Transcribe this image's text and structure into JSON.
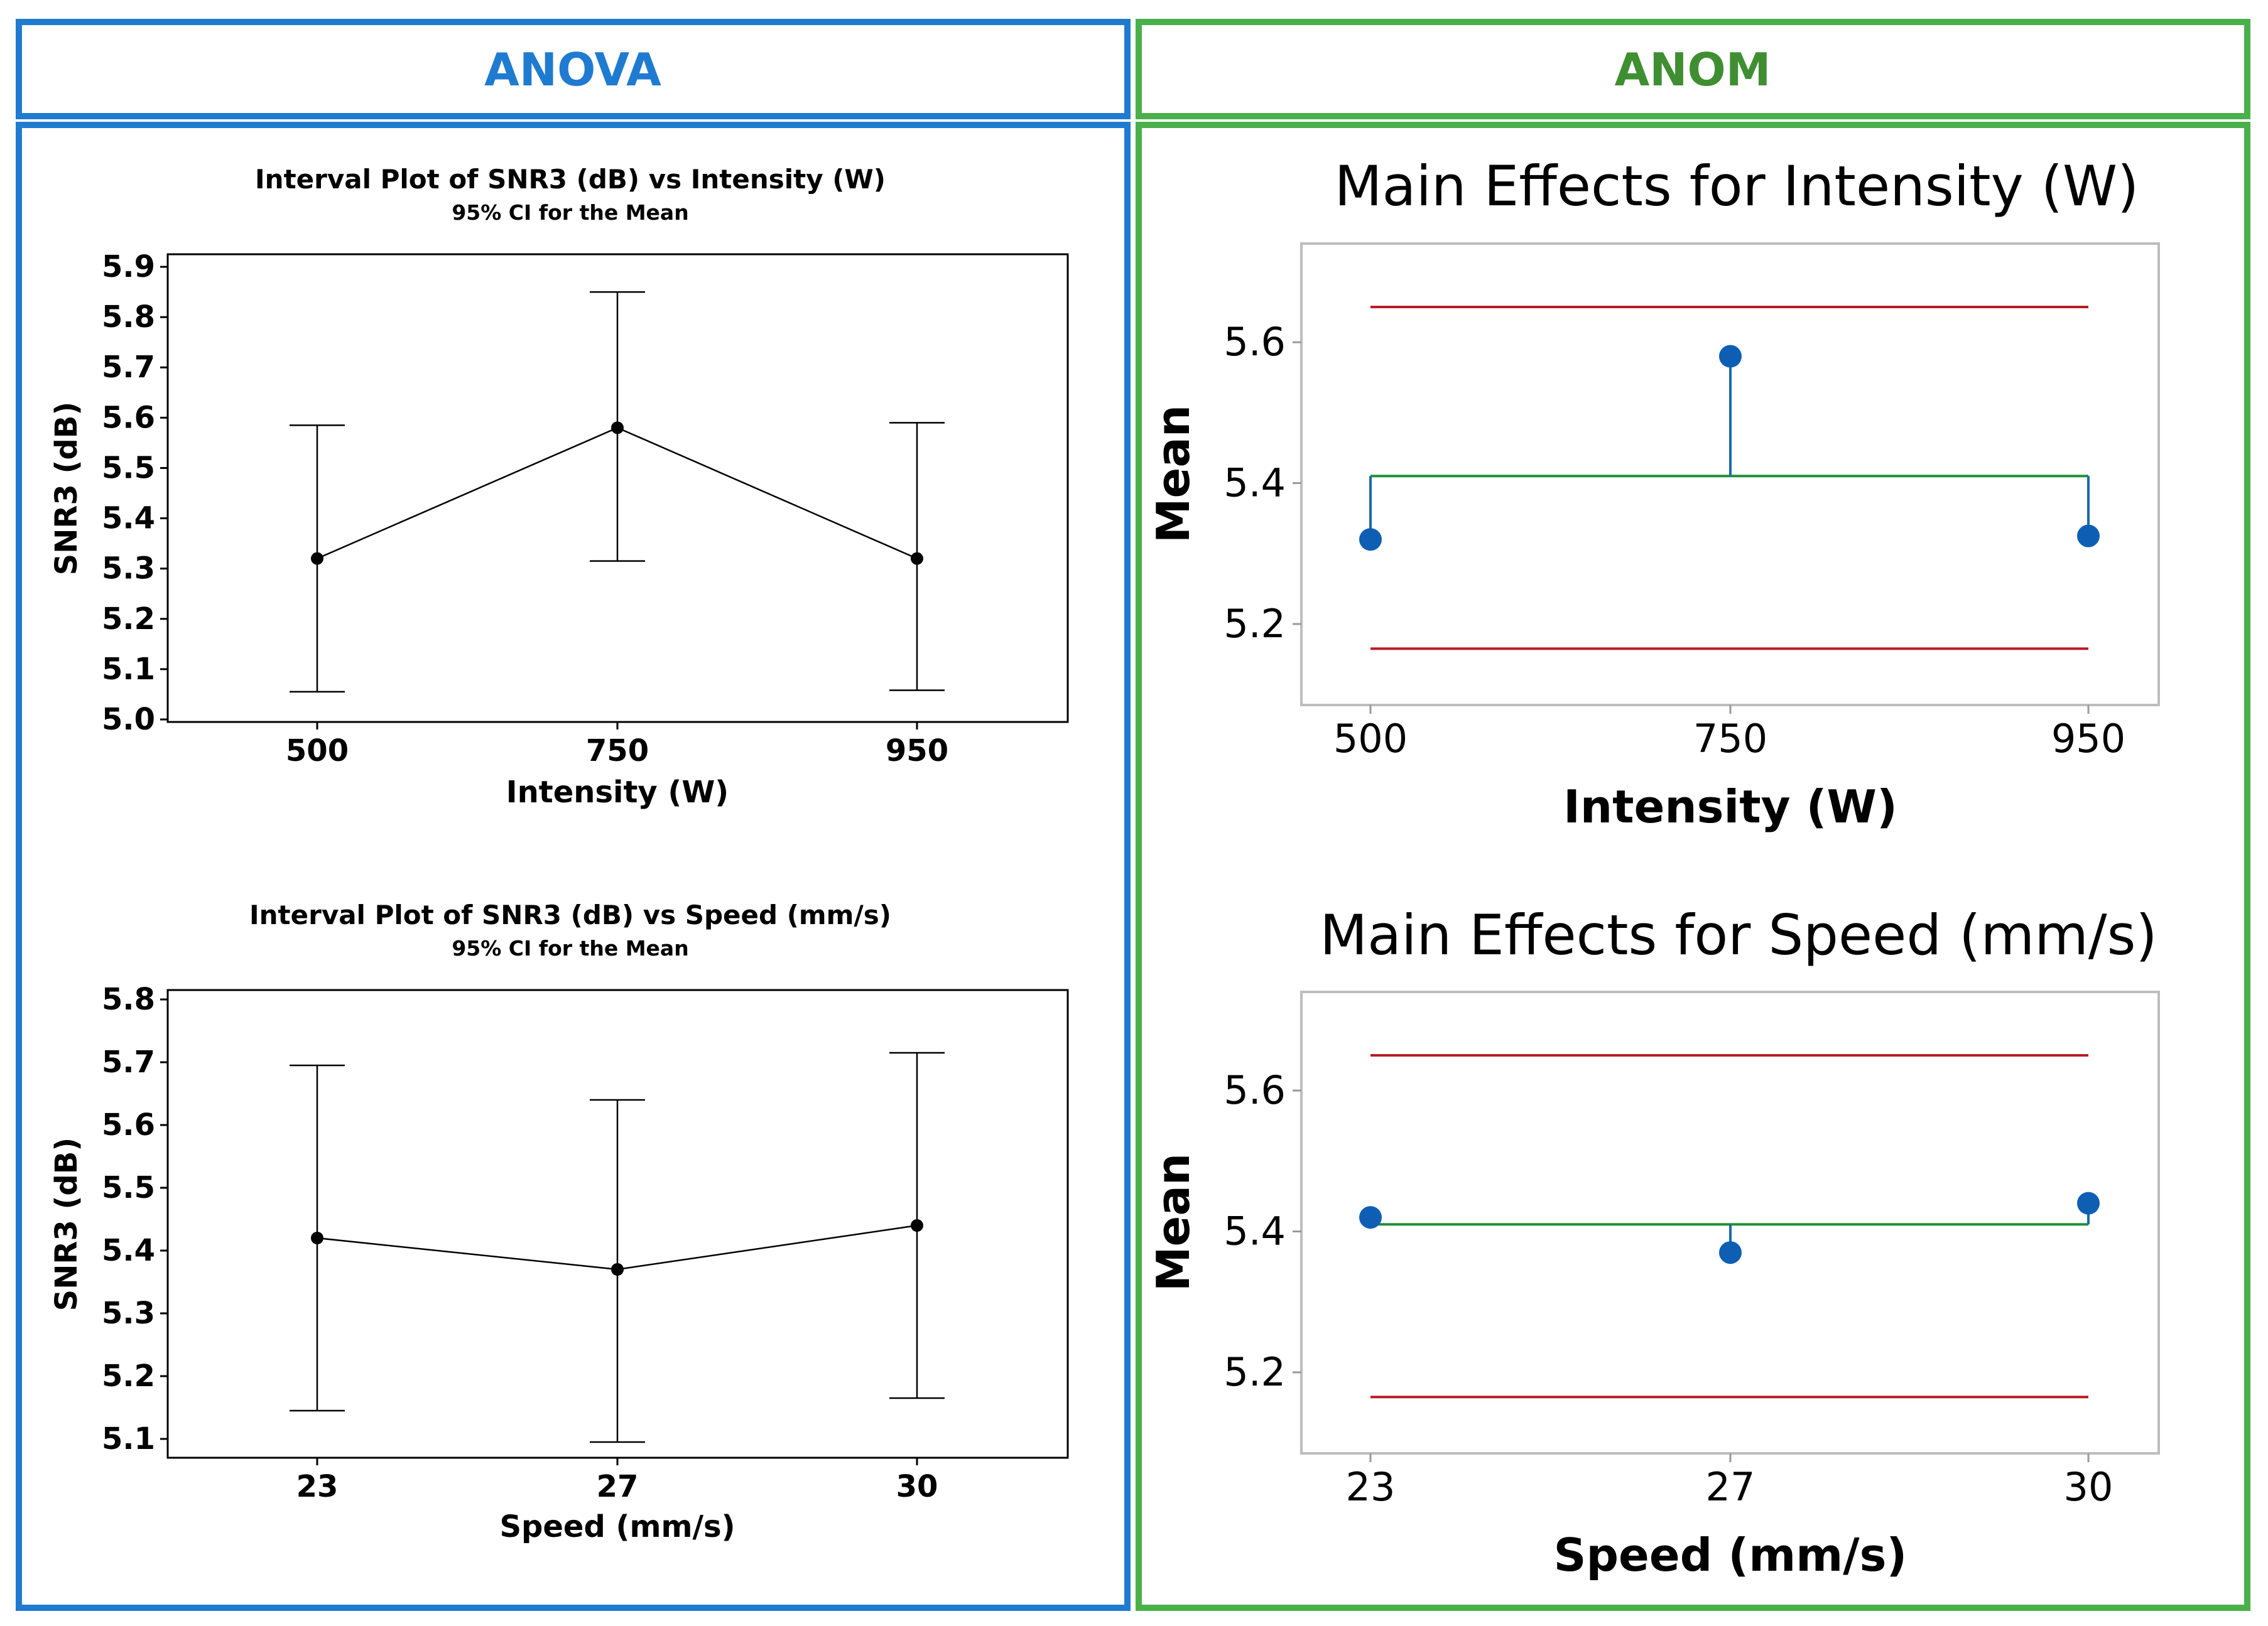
{
  "panels": {
    "anova": {
      "title": "ANOVA",
      "color": "#1f7bd0"
    },
    "anom": {
      "title": "ANOM",
      "color": "#4ab04a",
      "title_color": "#3f8f32"
    }
  },
  "chart_data": [
    {
      "type": "interval",
      "title": "Interval Plot of SNR3 (dB) vs Intensity (W)",
      "subtitle": "95% CI for the Mean",
      "xlabel": "Intensity (W)",
      "ylabel": "SNR3 (dB)",
      "categories": [
        "500",
        "750",
        "950"
      ],
      "means": [
        5.32,
        5.58,
        5.32
      ],
      "lower": [
        5.055,
        5.315,
        5.058
      ],
      "upper": [
        5.585,
        5.85,
        5.59
      ],
      "ylim": [
        4.995,
        5.925
      ],
      "yticks": [
        5.0,
        5.1,
        5.2,
        5.3,
        5.4,
        5.5,
        5.6,
        5.7,
        5.8,
        5.9
      ],
      "ytick_labels": [
        "5.0",
        "5.1",
        "5.2",
        "5.3",
        "5.4",
        "5.5",
        "5.6",
        "5.7",
        "5.8",
        "5.9"
      ]
    },
    {
      "type": "interval",
      "title": "Interval Plot of SNR3 (dB) vs Speed (mm/s)",
      "subtitle": "95% CI for the Mean",
      "xlabel": "Speed (mm/s)",
      "ylabel": "SNR3 (dB)",
      "categories": [
        "23",
        "27",
        "30"
      ],
      "means": [
        5.42,
        5.37,
        5.44
      ],
      "lower": [
        5.145,
        5.095,
        5.165
      ],
      "upper": [
        5.695,
        5.64,
        5.715
      ],
      "ylim": [
        5.07,
        5.815
      ],
      "yticks": [
        5.1,
        5.2,
        5.3,
        5.4,
        5.5,
        5.6,
        5.7,
        5.8
      ],
      "ytick_labels": [
        "5.1",
        "5.2",
        "5.3",
        "5.4",
        "5.5",
        "5.6",
        "5.7",
        "5.8"
      ]
    },
    {
      "type": "anom",
      "title": "Main Effects for Intensity (W)",
      "xlabel": "Intensity (W)",
      "ylabel": "Mean",
      "categories": [
        "500",
        "750",
        "950"
      ],
      "means": [
        5.32,
        5.58,
        5.325
      ],
      "center": 5.41,
      "udl": 5.65,
      "ldl": 5.165,
      "ylim": [
        5.085,
        5.74
      ],
      "yticks": [
        5.2,
        5.4,
        5.6
      ],
      "ytick_labels": [
        "5.2",
        "5.4",
        "5.6"
      ],
      "colors": {
        "point": "#0e5fb4",
        "center": "#1f8f3a",
        "limit": "#b81c25"
      }
    },
    {
      "type": "anom",
      "title": "Main Effects for Speed (mm/s)",
      "xlabel": "Speed (mm/s)",
      "ylabel": "Mean",
      "categories": [
        "23",
        "27",
        "30"
      ],
      "means": [
        5.42,
        5.37,
        5.44
      ],
      "center": 5.41,
      "udl": 5.65,
      "ldl": 5.165,
      "ylim": [
        5.085,
        5.74
      ],
      "yticks": [
        5.2,
        5.4,
        5.6
      ],
      "ytick_labels": [
        "5.2",
        "5.4",
        "5.6"
      ],
      "colors": {
        "point": "#0e5fb4",
        "center": "#1f8f3a",
        "limit": "#b81c25"
      }
    }
  ]
}
